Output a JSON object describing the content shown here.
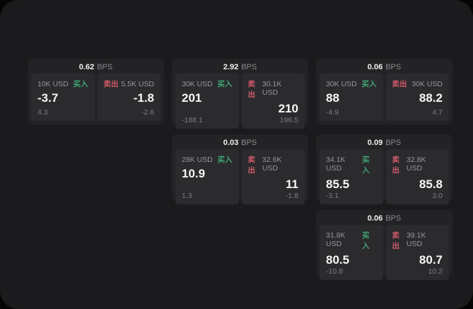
{
  "window": {
    "background": "#1b1b1d",
    "outer_background": "#050505"
  },
  "labels": {
    "buy": "买入",
    "sell": "卖出",
    "bps_unit": "BPS"
  },
  "colors": {
    "buy_green": "#40a571",
    "sell_red": "#d05a68",
    "card_background": "#232325",
    "panel_background": "#2b2b2e",
    "text_primary": "#f5f5f5",
    "text_muted": "#8a8a8d"
  },
  "cards": [
    {
      "bps": "0.62",
      "row": 1,
      "col": 1,
      "buy": {
        "amount": "10K USD",
        "value": "-3.7",
        "sub": "4.3"
      },
      "sell": {
        "amount": "5.5K USD",
        "value": "-1.8",
        "sub": "-2.6"
      }
    },
    {
      "bps": "2.92",
      "row": 1,
      "col": 2,
      "buy": {
        "amount": "30K USD",
        "value": "201",
        "sub": "-188.1"
      },
      "sell": {
        "amount": "30.1K USD",
        "value": "210",
        "sub": "196.5"
      }
    },
    {
      "bps": "0.06",
      "row": 1,
      "col": 3,
      "buy": {
        "amount": "30K USD",
        "value": "88",
        "sub": "-4.9"
      },
      "sell": {
        "amount": "30K USD",
        "value": "88.2",
        "sub": "4.7"
      }
    },
    {
      "bps": "0.03",
      "row": 2,
      "col": 2,
      "buy": {
        "amount": "28K USD",
        "value": "10.9",
        "sub": "1.3"
      },
      "sell": {
        "amount": "32.6K USD",
        "value": "11",
        "sub": "-1.8"
      }
    },
    {
      "bps": "0.09",
      "row": 2,
      "col": 3,
      "buy": {
        "amount": "34.1K USD",
        "value": "85.5",
        "sub": "-3.1"
      },
      "sell": {
        "amount": "32.8K USD",
        "value": "85.8",
        "sub": "3.0"
      }
    },
    {
      "bps": "0.06",
      "row": 3,
      "col": 3,
      "buy": {
        "amount": "31.8K USD",
        "value": "80.5",
        "sub": "-10.8"
      },
      "sell": {
        "amount": "39.1K USD",
        "value": "80.7",
        "sub": "10.2"
      }
    }
  ]
}
